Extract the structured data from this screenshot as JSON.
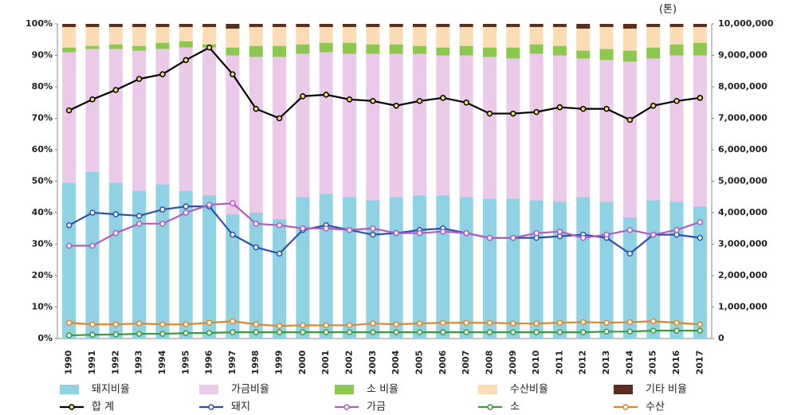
{
  "chart_data": {
    "type": "bar",
    "stacked": true,
    "annotation": "(톤)",
    "categories": [
      "1990",
      "1991",
      "1992",
      "1993",
      "1994",
      "1995",
      "1996",
      "1997",
      "1998",
      "1999",
      "2000",
      "2001",
      "2002",
      "2003",
      "2004",
      "2005",
      "2006",
      "2007",
      "2008",
      "2009",
      "2010",
      "2011",
      "2012",
      "2013",
      "2014",
      "2015",
      "2016",
      "2017"
    ],
    "ylim": [
      0,
      100
    ],
    "yticks": [
      {
        "value": 0,
        "label": "0%"
      },
      {
        "value": 10,
        "label": "10%"
      },
      {
        "value": 20,
        "label": "20%"
      },
      {
        "value": 30,
        "label": "30%"
      },
      {
        "value": 40,
        "label": "40%"
      },
      {
        "value": 50,
        "label": "50%"
      },
      {
        "value": 60,
        "label": "60%"
      },
      {
        "value": 70,
        "label": "70%"
      },
      {
        "value": 80,
        "label": "80%"
      },
      {
        "value": 90,
        "label": "90%"
      },
      {
        "value": 100,
        "label": "100%"
      }
    ],
    "y2lim": [
      0,
      10000000
    ],
    "y2ticks": [
      0,
      {
        "value": 1000000,
        "label": "1,000,000"
      },
      {
        "value": 2000000,
        "label": "2,000,000"
      },
      {
        "value": 3000000,
        "label": "3,000,000"
      },
      {
        "value": 4000000,
        "label": "4,000,000"
      },
      {
        "value": 5000000,
        "label": "5,000,000"
      },
      {
        "value": 6000000,
        "label": "6,000,000"
      },
      {
        "value": 7000000,
        "label": "7,000,000"
      },
      {
        "value": 8000000,
        "label": "8,000,000"
      },
      {
        "value": 9000000,
        "label": "9,000,000"
      },
      {
        "value": 10000000,
        "label": "10,000,000"
      }
    ],
    "grid": false,
    "series": [
      {
        "name": "돼지비율",
        "color": "#8fd2e3",
        "values": [
          49.5,
          53,
          49.5,
          47,
          49,
          47,
          45.5,
          39.5,
          40,
          38,
          45,
          46,
          45,
          44,
          45,
          45.5,
          45.5,
          45,
          44.5,
          44.5,
          44,
          43.5,
          45,
          43.5,
          38.5,
          44,
          43.5,
          42
        ]
      },
      {
        "name": "가금비율",
        "color": "#ebc9e8",
        "values": [
          41.5,
          39,
          42.5,
          44.5,
          43,
          45.5,
          47,
          50.5,
          49.5,
          51.5,
          45.5,
          45,
          45.5,
          46.5,
          45.5,
          45,
          44.5,
          45,
          45,
          44.5,
          46.5,
          46.5,
          44,
          45,
          49.5,
          45,
          46.5,
          48
        ]
      },
      {
        "name": "소 비율",
        "color": "#8cc850",
        "values": [
          1.5,
          1,
          1.5,
          1.5,
          2,
          2,
          1,
          2.5,
          3.5,
          3.5,
          3,
          3,
          3.5,
          3,
          3,
          2.5,
          2.5,
          3,
          3,
          3.5,
          3,
          3,
          2.5,
          3.5,
          3.5,
          3.5,
          3.5,
          4
        ]
      },
      {
        "name": "수산비율",
        "color": "#fbdcb4",
        "values": [
          6.5,
          6,
          5.5,
          6,
          5,
          4.5,
          5.5,
          6,
          6,
          6,
          5.5,
          5,
          5,
          5.5,
          5.5,
          6,
          6.5,
          6,
          6.5,
          6.5,
          5.5,
          6,
          7,
          7,
          7,
          6.5,
          5.5,
          5
        ]
      },
      {
        "name": "기타 비율",
        "color": "#5a2d1e",
        "values": [
          1,
          1,
          1,
          1,
          1,
          1,
          1,
          1.5,
          1,
          1,
          1,
          1,
          1,
          1,
          1,
          1,
          1,
          1,
          1,
          1,
          1,
          1,
          1.5,
          1,
          1.5,
          1,
          1,
          1
        ]
      },
      {
        "name": "합 계",
        "type": "line",
        "axis": "y2",
        "color": "#000000",
        "marker": "#e8e060",
        "values": [
          7250000,
          7600000,
          7900000,
          8250000,
          8400000,
          8850000,
          9250000,
          8400000,
          7300000,
          7000000,
          7700000,
          7750000,
          7600000,
          7550000,
          7400000,
          7550000,
          7650000,
          7500000,
          7150000,
          7150000,
          7200000,
          7350000,
          7300000,
          7300000,
          6950000,
          7400000,
          7550000,
          7650000
        ]
      },
      {
        "name": "돼지",
        "type": "line",
        "axis": "y2",
        "color": "#2e4fa8",
        "marker": "#ffffff",
        "values": [
          3600000,
          4000000,
          3950000,
          3900000,
          4100000,
          4200000,
          4200000,
          3300000,
          2900000,
          2700000,
          3450000,
          3600000,
          3450000,
          3300000,
          3350000,
          3450000,
          3500000,
          3350000,
          3200000,
          3200000,
          3200000,
          3250000,
          3300000,
          3200000,
          2700000,
          3300000,
          3300000,
          3200000
        ]
      },
      {
        "name": "가금",
        "type": "line",
        "axis": "y2",
        "color": "#b25cc0",
        "marker": "#ffffff",
        "values": [
          2950000,
          2950000,
          3350000,
          3650000,
          3650000,
          4000000,
          4250000,
          4300000,
          3650000,
          3600000,
          3500000,
          3500000,
          3450000,
          3500000,
          3350000,
          3350000,
          3400000,
          3350000,
          3200000,
          3200000,
          3350000,
          3400000,
          3200000,
          3300000,
          3450000,
          3300000,
          3450000,
          3700000
        ]
      },
      {
        "name": "소",
        "type": "line",
        "axis": "y2",
        "color": "#3c9a3c",
        "marker": "#ffffff",
        "values": [
          100000,
          120000,
          130000,
          150000,
          150000,
          170000,
          180000,
          200000,
          200000,
          200000,
          200000,
          200000,
          200000,
          200000,
          200000,
          200000,
          200000,
          200000,
          200000,
          200000,
          200000,
          200000,
          200000,
          220000,
          220000,
          250000,
          250000,
          250000
        ]
      },
      {
        "name": "수산",
        "type": "line",
        "axis": "y2",
        "color": "#e0862a",
        "marker": "#ffffff",
        "values": [
          500000,
          450000,
          450000,
          480000,
          450000,
          450000,
          500000,
          550000,
          450000,
          400000,
          420000,
          420000,
          420000,
          480000,
          450000,
          480000,
          500000,
          500000,
          500000,
          480000,
          480000,
          500000,
          520000,
          500000,
          520000,
          550000,
          500000,
          450000
        ]
      }
    ]
  }
}
